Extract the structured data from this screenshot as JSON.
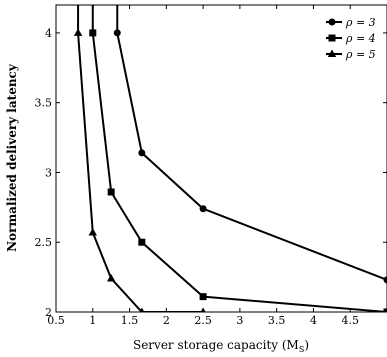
{
  "chart_data": {
    "type": "line",
    "xlabel": "Server storage capacity",
    "xlabel_unit": "(M",
    "xlabel_unit_sub": "S",
    "xlabel_unit_close": ")",
    "ylabel": "Normalized delivery latency",
    "xlim": [
      0.5,
      5
    ],
    "ylim": [
      2,
      4.2
    ],
    "xticks": [
      0.5,
      1,
      1.5,
      2,
      2.5,
      3,
      3.5,
      4,
      4.5
    ],
    "xtick_labels": [
      "0.5",
      "1",
      "1.5",
      "2",
      "2.5",
      "3",
      "3.5",
      "4",
      "4.5"
    ],
    "yticks": [
      2,
      2.5,
      3,
      3.5,
      4
    ],
    "ytick_labels": [
      "2",
      "2.5",
      "3",
      "3.5",
      "4"
    ],
    "legend_position": "top-right",
    "grid": false,
    "series": [
      {
        "name": "ρ = 3",
        "marker": "circle",
        "values": [
          [
            1.333,
            4.2
          ],
          [
            1.333,
            4.0
          ],
          [
            1.667,
            3.14
          ],
          [
            2.5,
            2.74
          ],
          [
            5.0,
            2.23
          ]
        ]
      },
      {
        "name": "ρ = 4",
        "marker": "square",
        "values": [
          [
            1.0,
            4.2
          ],
          [
            1.0,
            4.0
          ],
          [
            1.25,
            2.86
          ],
          [
            1.667,
            2.5
          ],
          [
            2.5,
            2.11
          ],
          [
            5.0,
            2.0
          ]
        ]
      },
      {
        "name": "ρ = 5",
        "marker": "triangle",
        "values": [
          [
            0.8,
            4.2
          ],
          [
            0.8,
            4.0
          ],
          [
            1.0,
            2.57
          ],
          [
            1.25,
            2.24
          ],
          [
            1.667,
            2.0
          ],
          [
            2.5,
            2.0
          ]
        ]
      }
    ]
  }
}
